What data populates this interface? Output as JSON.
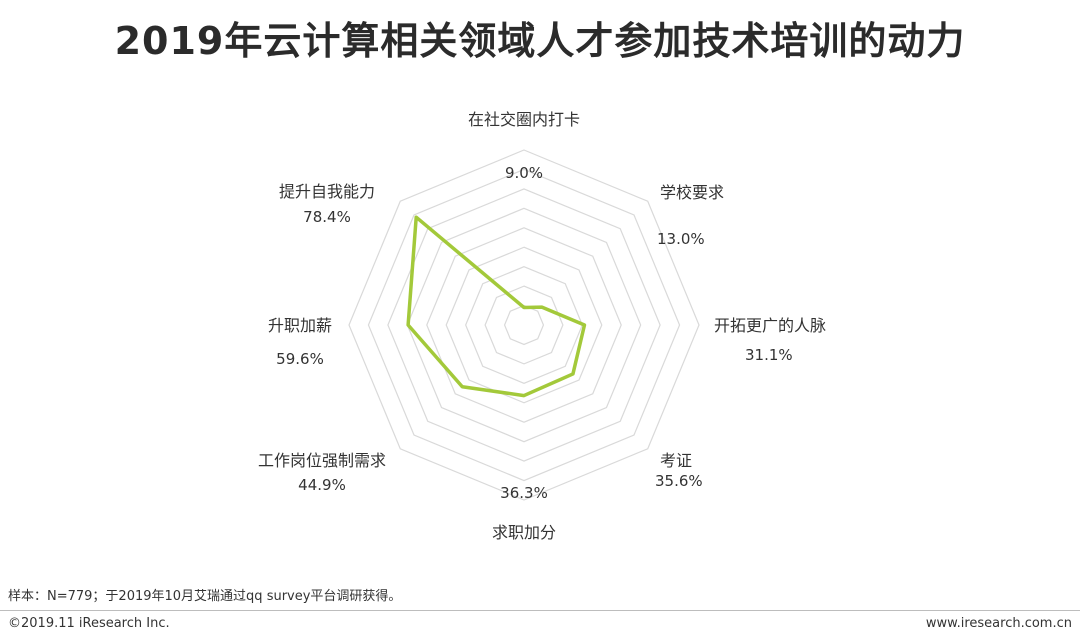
{
  "chart_data": {
    "type": "radar",
    "title": "2019年云计算相关领域人才参加技术培训的动力",
    "unit": "%",
    "max": 90,
    "ring_count": 9,
    "categories": [
      "在社交圈内打卡",
      "学校要求",
      "开拓更广的人脉",
      "考证",
      "求职加分",
      "工作岗位强制需求",
      "升职加薪",
      "提升自我能力"
    ],
    "values": [
      9.0,
      13.0,
      31.1,
      35.6,
      36.3,
      44.9,
      59.6,
      78.4
    ],
    "value_labels": [
      "9.0%",
      "13.0%",
      "31.1%",
      "35.6%",
      "36.3%",
      "44.9%",
      "59.6%",
      "78.4%"
    ],
    "series_color": "#a3c93a",
    "grid_color": "#d9d9d9"
  },
  "footer": {
    "note": "样本：N=779；于2019年10月艾瑞通过qq survey平台调研获得。",
    "copyright": "©2019.11 iResearch Inc.",
    "website": "www.iresearch.com.cn"
  }
}
